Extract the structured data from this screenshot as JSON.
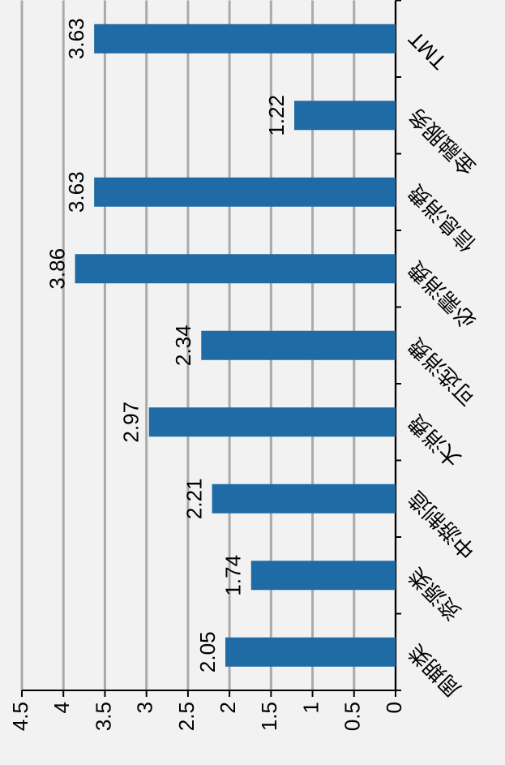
{
  "chart_data": {
    "type": "bar",
    "categories": [
      "周期类",
      "资源类",
      "中游制造",
      "大消费",
      "可选消费",
      "必需消费",
      "信息消费",
      "金融服务",
      "TMT"
    ],
    "values": [
      2.05,
      1.74,
      2.21,
      2.97,
      2.34,
      3.86,
      3.63,
      1.22,
      3.63
    ],
    "color": "#1f6ba5",
    "ylim": [
      0,
      4.5
    ],
    "yticks": [
      0,
      0.5,
      1,
      1.5,
      2,
      2.5,
      3,
      3.5,
      4,
      4.5
    ],
    "grid": true
  }
}
